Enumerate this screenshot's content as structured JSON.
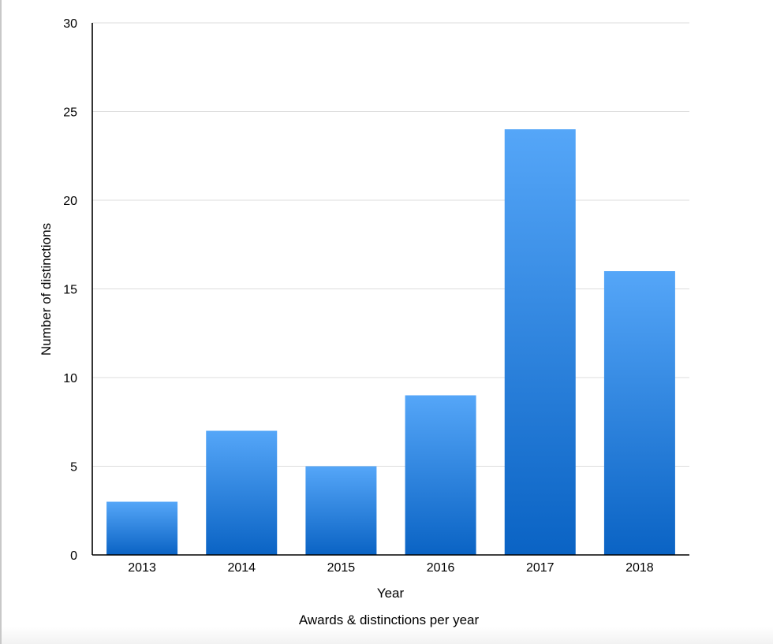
{
  "chart_data": {
    "type": "bar",
    "title": "",
    "caption": "Awards & distinctions per year",
    "xlabel": "Year",
    "ylabel": "Number of distinctions",
    "categories": [
      "2013",
      "2014",
      "2015",
      "2016",
      "2017",
      "2018"
    ],
    "values": [
      3,
      7,
      5,
      9,
      24,
      16
    ],
    "ylim": [
      0,
      30
    ],
    "yticks": [
      0,
      5,
      10,
      15,
      20,
      25,
      30
    ],
    "grid": true,
    "legend": "none",
    "colors": {
      "bar_top": "#55a6f8",
      "bar_bottom": "#0a63c4",
      "grid": "#dddddd",
      "axis": "#000000"
    }
  }
}
